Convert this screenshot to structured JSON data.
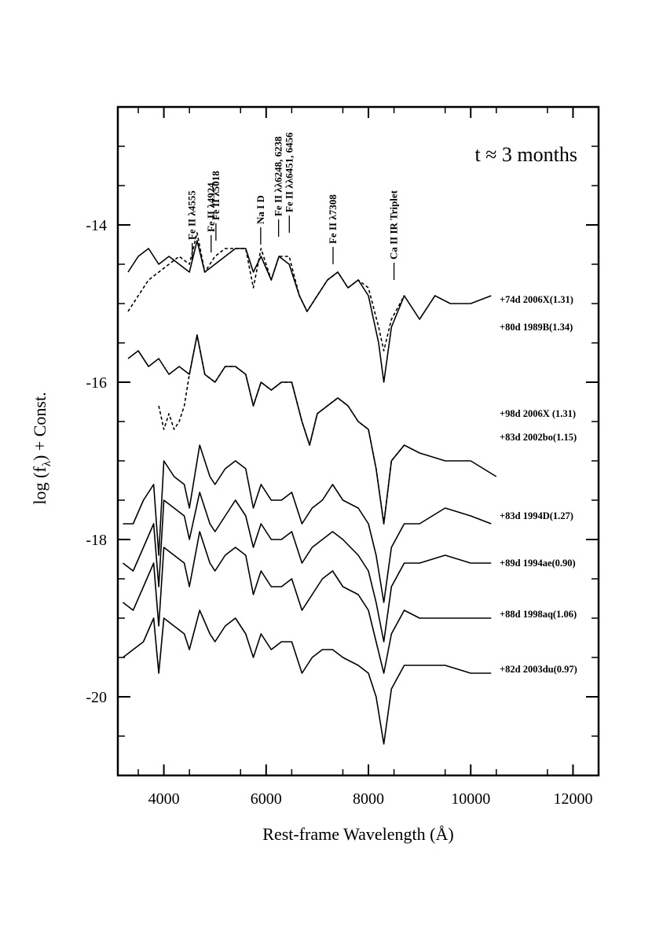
{
  "chart_data": {
    "type": "line",
    "xlabel": "Rest-frame Wavelength (Å)",
    "ylabel": "log (f",
    "ylabel_subscript": "λ",
    "ylabel_suffix": ") + Const.",
    "xlim": [
      3100,
      12500
    ],
    "ylim": [
      -21,
      -12.5
    ],
    "x_ticks": [
      4000,
      6000,
      8000,
      10000,
      12000
    ],
    "x_tick_labels": [
      "4000",
      "6000",
      "8000",
      "10000",
      "12000"
    ],
    "y_ticks": [
      -14,
      -16,
      -18,
      -20
    ],
    "y_tick_labels": [
      "-14",
      "-16",
      "-18",
      "-20"
    ],
    "annotation": "t ≈ 3 months",
    "line_ids": [
      {
        "label": "Fe II λ4555",
        "x": 4555
      },
      {
        "label": "Fe II λ4924",
        "x": 4924
      },
      {
        "label": "Fe II λ5018",
        "x": 5018
      },
      {
        "label": "Na I D",
        "x": 5893
      },
      {
        "label": "Fe II λλ6248, 6238",
        "x": 6243
      },
      {
        "label": "Fe II λλ6451, 6456",
        "x": 6453
      },
      {
        "label": "Fe II λ7308",
        "x": 7308
      },
      {
        "label": "Ca II IR Triplet",
        "x": 8500
      }
    ],
    "series": [
      {
        "name": "+74d 2006X(1.31)",
        "style": "solid",
        "x": [
          3300,
          3500,
          3700,
          3900,
          4100,
          4300,
          4500,
          4650,
          4800,
          5000,
          5200,
          5400,
          5600,
          5750,
          5900,
          6100,
          6250,
          6450,
          6650,
          6800,
          7000,
          7200,
          7400,
          7600,
          7800,
          8000,
          8200,
          8300,
          8450,
          8700,
          9000,
          9300,
          9600,
          10000,
          10400
        ],
        "y": [
          -14.6,
          -14.4,
          -14.3,
          -14.5,
          -14.4,
          -14.5,
          -14.6,
          -14.2,
          -14.6,
          -14.5,
          -14.4,
          -14.3,
          -14.3,
          -14.6,
          -14.4,
          -14.7,
          -14.4,
          -14.5,
          -14.9,
          -15.1,
          -14.9,
          -14.7,
          -14.6,
          -14.8,
          -14.7,
          -14.9,
          -15.5,
          -16.0,
          -15.3,
          -14.9,
          -15.2,
          -14.9,
          -15.0,
          -15.0,
          -14.9
        ]
      },
      {
        "name": "+80d 1989B(1.34)",
        "style": "dashed",
        "x": [
          3300,
          3500,
          3700,
          3900,
          4100,
          4300,
          4500,
          4650,
          4800,
          5000,
          5200,
          5400,
          5600,
          5750,
          5900,
          6100,
          6250,
          6450,
          6650,
          6800,
          7000,
          7200,
          7400,
          7600,
          7800,
          8000,
          8200,
          8300,
          8450,
          8700
        ],
        "y": [
          -15.1,
          -14.9,
          -14.7,
          -14.6,
          -14.5,
          -14.4,
          -14.5,
          -14.1,
          -14.6,
          -14.4,
          -14.3,
          -14.3,
          -14.3,
          -14.8,
          -14.3,
          -14.7,
          -14.4,
          -14.4,
          -14.9,
          -15.1,
          -14.9,
          -14.7,
          -14.6,
          -14.8,
          -14.7,
          -14.8,
          -15.3,
          -15.6,
          -15.2,
          -14.9
        ]
      },
      {
        "name": "+98d 2006X (1.31)",
        "style": "solid",
        "x": [
          3300,
          3500,
          3700,
          3900,
          4100,
          4300,
          4500,
          4650,
          4800,
          5000,
          5200,
          5400,
          5600,
          5750,
          5900,
          6100,
          6300,
          6500,
          6700,
          6850,
          7000,
          7200,
          7400,
          7600,
          7800,
          8000,
          8150,
          8300,
          8450,
          8700,
          9000,
          9500,
          10000,
          10500
        ],
        "y": [
          -15.7,
          -15.6,
          -15.8,
          -15.7,
          -15.9,
          -15.8,
          -15.9,
          -15.4,
          -15.9,
          -16.0,
          -15.8,
          -15.8,
          -15.9,
          -16.3,
          -16.0,
          -16.1,
          -16.0,
          -16.0,
          -16.5,
          -16.8,
          -16.4,
          -16.3,
          -16.2,
          -16.3,
          -16.5,
          -16.6,
          -17.1,
          -17.8,
          -17.0,
          -16.8,
          -16.9,
          -17.0,
          -17.0,
          -17.2
        ]
      },
      {
        "name": "+83d 2002bo(1.15)",
        "style": "dashed",
        "x": [
          3900,
          4000,
          4100,
          4200,
          4300,
          4400,
          4500,
          4650,
          4800,
          5000,
          5200,
          5400,
          5600,
          5750,
          5900,
          6100,
          6300,
          6500,
          6700,
          6850,
          7000,
          7200,
          7400,
          7600,
          7800,
          8000,
          8150,
          8300,
          8450,
          8700
        ],
        "y": [
          -16.3,
          -16.6,
          -16.4,
          -16.6,
          -16.5,
          -16.3,
          -15.9,
          -15.4,
          -15.9,
          -16.0,
          -15.8,
          -15.8,
          -15.9,
          -16.3,
          -16.0,
          -16.1,
          -16.0,
          -16.0,
          -16.5,
          -16.8,
          -16.4,
          -16.3,
          -16.2,
          -16.3,
          -16.5,
          -16.6,
          -17.1,
          -17.8,
          -17.0,
          -16.8
        ]
      },
      {
        "name": "+83d 1994D(1.27)",
        "style": "solid",
        "x": [
          3200,
          3400,
          3600,
          3800,
          3900,
          4000,
          4200,
          4400,
          4500,
          4700,
          4900,
          5000,
          5200,
          5400,
          5600,
          5750,
          5900,
          6100,
          6300,
          6500,
          6700,
          6900,
          7100,
          7300,
          7500,
          7800,
          8000,
          8150,
          8300,
          8450,
          8700,
          9000,
          9500,
          10000,
          10400
        ],
        "y": [
          -17.8,
          -17.8,
          -17.5,
          -17.3,
          -18.2,
          -17.0,
          -17.2,
          -17.3,
          -17.6,
          -16.8,
          -17.2,
          -17.3,
          -17.1,
          -17.0,
          -17.1,
          -17.6,
          -17.3,
          -17.5,
          -17.5,
          -17.4,
          -17.8,
          -17.6,
          -17.5,
          -17.3,
          -17.5,
          -17.6,
          -17.8,
          -18.2,
          -18.8,
          -18.1,
          -17.8,
          -17.8,
          -17.6,
          -17.7,
          -17.8
        ]
      },
      {
        "name": "+89d 1994ae(0.90)",
        "style": "solid",
        "x": [
          3200,
          3400,
          3600,
          3800,
          3900,
          4000,
          4200,
          4400,
          4500,
          4700,
          4900,
          5000,
          5200,
          5400,
          5600,
          5750,
          5900,
          6100,
          6300,
          6500,
          6700,
          6900,
          7100,
          7300,
          7500,
          7800,
          8000,
          8150,
          8300,
          8450,
          8700,
          9000,
          9500,
          10000,
          10400
        ],
        "y": [
          -18.3,
          -18.4,
          -18.1,
          -17.8,
          -18.6,
          -17.5,
          -17.6,
          -17.7,
          -18.0,
          -17.4,
          -17.8,
          -17.9,
          -17.7,
          -17.5,
          -17.7,
          -18.1,
          -17.8,
          -18.0,
          -18.0,
          -17.9,
          -18.3,
          -18.1,
          -18.0,
          -17.9,
          -18.0,
          -18.2,
          -18.4,
          -18.8,
          -19.3,
          -18.6,
          -18.3,
          -18.3,
          -18.2,
          -18.3,
          -18.3
        ]
      },
      {
        "name": "+88d 1998aq(1.06)",
        "style": "solid",
        "x": [
          3200,
          3400,
          3600,
          3800,
          3900,
          4000,
          4200,
          4400,
          4500,
          4700,
          4900,
          5000,
          5200,
          5400,
          5600,
          5750,
          5900,
          6100,
          6300,
          6500,
          6700,
          6900,
          7100,
          7300,
          7500,
          7800,
          8000,
          8150,
          8300,
          8450,
          8700,
          9000,
          9500,
          10000,
          10400
        ],
        "y": [
          -18.8,
          -18.9,
          -18.6,
          -18.3,
          -19.1,
          -18.1,
          -18.2,
          -18.3,
          -18.6,
          -17.9,
          -18.3,
          -18.4,
          -18.2,
          -18.1,
          -18.2,
          -18.7,
          -18.4,
          -18.6,
          -18.6,
          -18.5,
          -18.9,
          -18.7,
          -18.5,
          -18.4,
          -18.6,
          -18.7,
          -18.9,
          -19.3,
          -19.7,
          -19.2,
          -18.9,
          -19.0,
          -19.0,
          -19.0,
          -19.0
        ]
      },
      {
        "name": "+82d 2003du(0.97)",
        "style": "solid",
        "x": [
          3200,
          3400,
          3600,
          3800,
          3900,
          4000,
          4200,
          4400,
          4500,
          4700,
          4900,
          5000,
          5200,
          5400,
          5600,
          5750,
          5900,
          6100,
          6300,
          6500,
          6700,
          6900,
          7100,
          7300,
          7500,
          7800,
          8000,
          8150,
          8300,
          8450,
          8700,
          9000,
          9500,
          10000,
          10400
        ],
        "y": [
          -19.5,
          -19.4,
          -19.3,
          -19.0,
          -19.7,
          -19.0,
          -19.1,
          -19.2,
          -19.4,
          -18.9,
          -19.2,
          -19.3,
          -19.1,
          -19.0,
          -19.2,
          -19.5,
          -19.2,
          -19.4,
          -19.3,
          -19.3,
          -19.7,
          -19.5,
          -19.4,
          -19.4,
          -19.5,
          -19.6,
          -19.7,
          -20.0,
          -20.6,
          -19.9,
          -19.6,
          -19.6,
          -19.6,
          -19.7,
          -19.7
        ]
      }
    ]
  }
}
